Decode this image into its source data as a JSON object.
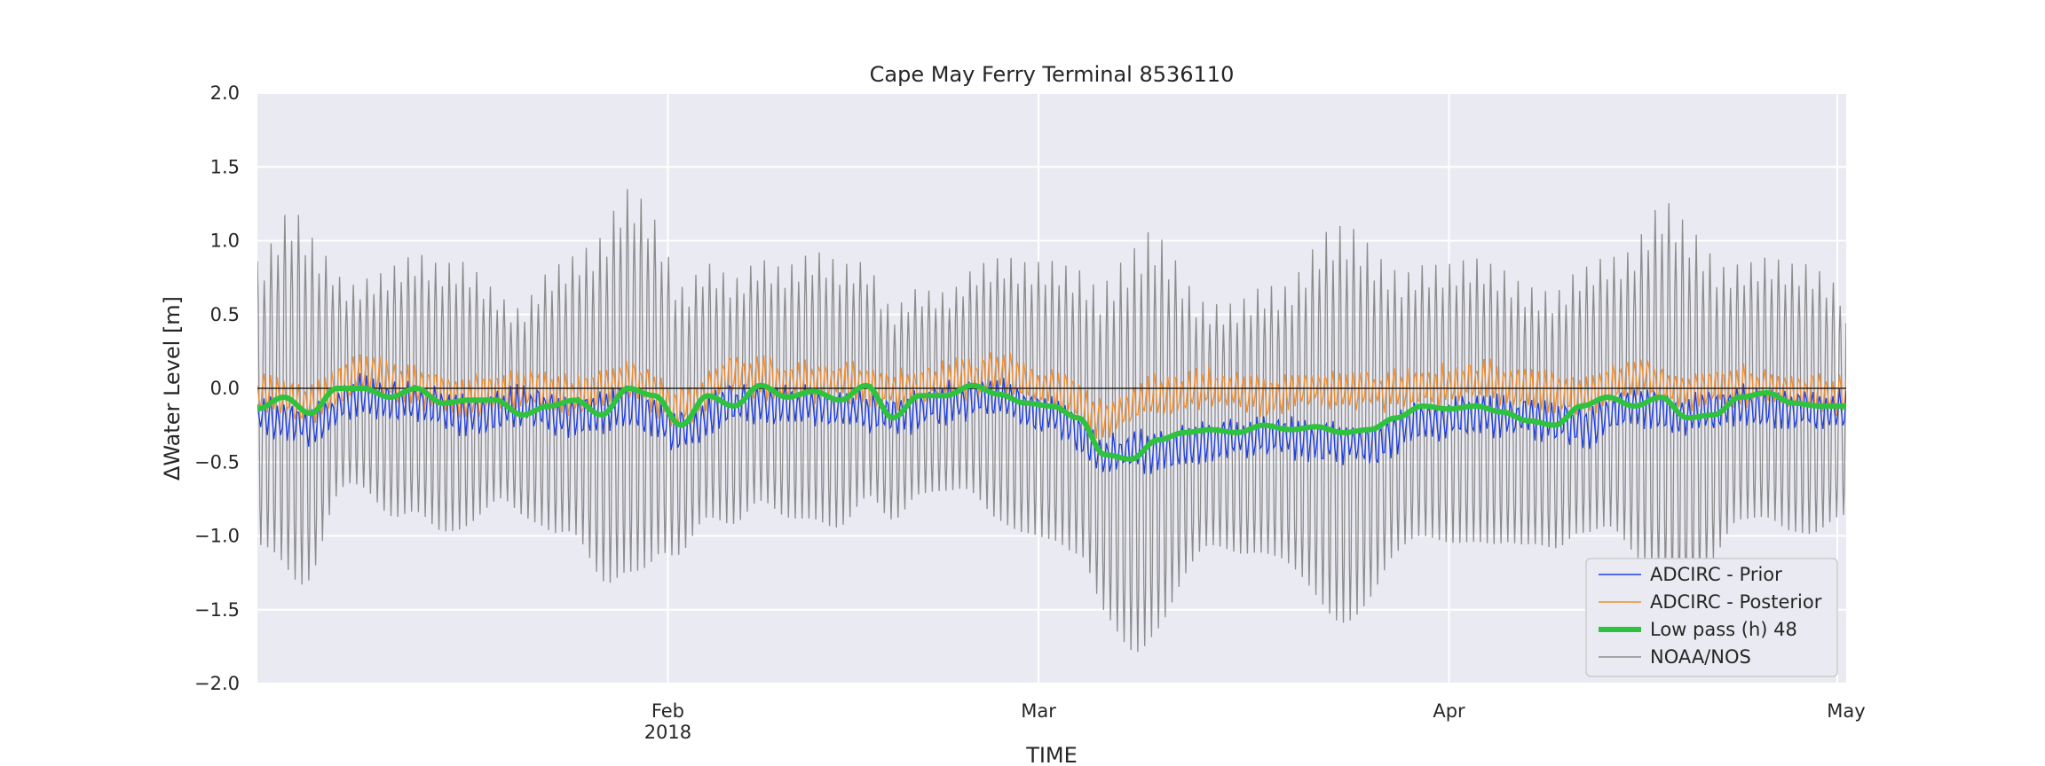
{
  "chart_data": {
    "type": "line",
    "title": "Cape May Ferry Terminal  8536110",
    "xlabel": "TIME",
    "ylabel": "ΔWater Level [m]",
    "xlim": [
      "2018-01-01",
      "2018-05-01"
    ],
    "ylim": [
      -2.0,
      2.0
    ],
    "y_ticks": [
      -2.0,
      -1.5,
      -1.0,
      -0.5,
      0.0,
      0.5,
      1.0,
      1.5,
      2.0
    ],
    "y_tick_labels": [
      "−2.0",
      "−1.5",
      "−1.0",
      "−0.5",
      "0.0",
      "0.5",
      "1.0",
      "1.5",
      "2.0"
    ],
    "x_ticks": [
      {
        "date": "2018-02-01",
        "label": "Feb",
        "sublabel": "2018"
      },
      {
        "date": "2018-03-01",
        "label": "Mar",
        "sublabel": ""
      },
      {
        "date": "2018-04-01",
        "label": "Apr",
        "sublabel": ""
      },
      {
        "date": "2018-05-01",
        "label": "May",
        "sublabel": ""
      }
    ],
    "grid": true,
    "zero_line": true,
    "legend_position": "lower-right",
    "background_color": "#eaeaf2",
    "series": [
      {
        "name": "ADCIRC - Prior",
        "color": "#1f3fe0",
        "style": "thin",
        "description_values": "tidal-filtered residual, approx. low pass plus ±0.1 m noise",
        "x": [
          "2018-01-01",
          "2018-01-05",
          "2018-01-09",
          "2018-01-13",
          "2018-01-17",
          "2018-01-21",
          "2018-01-25",
          "2018-01-29",
          "2018-02-02",
          "2018-02-06",
          "2018-02-10",
          "2018-02-14",
          "2018-02-18",
          "2018-02-22",
          "2018-02-26",
          "2018-03-02",
          "2018-03-06",
          "2018-03-10",
          "2018-03-14",
          "2018-03-18",
          "2018-03-22",
          "2018-03-26",
          "2018-03-30",
          "2018-04-03",
          "2018-04-07",
          "2018-04-11",
          "2018-04-15",
          "2018-04-19",
          "2018-04-23",
          "2018-04-27",
          "2018-05-01"
        ],
        "y": [
          -0.18,
          -0.25,
          -0.05,
          -0.1,
          -0.18,
          -0.12,
          -0.2,
          -0.12,
          -0.28,
          -0.1,
          -0.1,
          -0.14,
          -0.18,
          -0.1,
          -0.06,
          -0.18,
          -0.45,
          -0.42,
          -0.35,
          -0.33,
          -0.35,
          -0.38,
          -0.22,
          -0.18,
          -0.2,
          -0.26,
          -0.12,
          -0.18,
          -0.12,
          -0.14,
          -0.15
        ]
      },
      {
        "name": "ADCIRC - Posterior",
        "color": "#f28e2b",
        "style": "thin",
        "x": [
          "2018-01-01",
          "2018-01-05",
          "2018-01-09",
          "2018-01-13",
          "2018-01-17",
          "2018-01-21",
          "2018-01-25",
          "2018-01-29",
          "2018-02-02",
          "2018-02-06",
          "2018-02-10",
          "2018-02-14",
          "2018-02-18",
          "2018-02-22",
          "2018-02-26",
          "2018-03-02",
          "2018-03-06",
          "2018-03-10",
          "2018-03-14",
          "2018-03-18",
          "2018-03-22",
          "2018-03-26",
          "2018-03-30",
          "2018-04-03",
          "2018-04-07",
          "2018-04-11",
          "2018-04-15",
          "2018-04-19",
          "2018-04-23",
          "2018-04-27",
          "2018-05-01"
        ],
        "y": [
          -0.05,
          -0.1,
          0.1,
          0.0,
          -0.05,
          0.0,
          -0.05,
          0.05,
          -0.12,
          0.1,
          0.05,
          0.05,
          0.0,
          0.05,
          0.1,
          0.0,
          -0.2,
          -0.05,
          0.0,
          -0.05,
          0.0,
          -0.02,
          0.0,
          0.05,
          0.0,
          -0.05,
          0.08,
          -0.02,
          0.02,
          -0.02,
          -0.05
        ]
      },
      {
        "name": "Low pass (h) 48",
        "color": "#2ec23e",
        "style": "thick",
        "x": [
          "2018-01-01",
          "2018-01-03",
          "2018-01-05",
          "2018-01-07",
          "2018-01-09",
          "2018-01-11",
          "2018-01-13",
          "2018-01-15",
          "2018-01-17",
          "2018-01-19",
          "2018-01-21",
          "2018-01-23",
          "2018-01-25",
          "2018-01-27",
          "2018-01-29",
          "2018-01-31",
          "2018-02-02",
          "2018-02-04",
          "2018-02-06",
          "2018-02-08",
          "2018-02-10",
          "2018-02-12",
          "2018-02-14",
          "2018-02-16",
          "2018-02-18",
          "2018-02-20",
          "2018-02-22",
          "2018-02-24",
          "2018-02-26",
          "2018-02-28",
          "2018-03-02",
          "2018-03-04",
          "2018-03-06",
          "2018-03-08",
          "2018-03-10",
          "2018-03-12",
          "2018-03-14",
          "2018-03-16",
          "2018-03-18",
          "2018-03-20",
          "2018-03-22",
          "2018-03-24",
          "2018-03-26",
          "2018-03-28",
          "2018-03-30",
          "2018-04-01",
          "2018-04-03",
          "2018-04-05",
          "2018-04-07",
          "2018-04-09",
          "2018-04-11",
          "2018-04-13",
          "2018-04-15",
          "2018-04-17",
          "2018-04-19",
          "2018-04-21",
          "2018-04-23",
          "2018-04-25",
          "2018-04-27",
          "2018-04-29",
          "2018-05-01"
        ],
        "y": [
          -0.14,
          -0.06,
          -0.17,
          0.0,
          0.0,
          -0.06,
          0.0,
          -0.1,
          -0.08,
          -0.08,
          -0.18,
          -0.12,
          -0.08,
          -0.18,
          0.0,
          -0.05,
          -0.25,
          -0.05,
          -0.12,
          0.02,
          -0.06,
          -0.02,
          -0.08,
          0.02,
          -0.2,
          -0.05,
          -0.05,
          0.02,
          -0.04,
          -0.1,
          -0.12,
          -0.2,
          -0.45,
          -0.48,
          -0.35,
          -0.3,
          -0.28,
          -0.3,
          -0.25,
          -0.28,
          -0.26,
          -0.3,
          -0.28,
          -0.2,
          -0.12,
          -0.14,
          -0.12,
          -0.16,
          -0.22,
          -0.25,
          -0.12,
          -0.06,
          -0.12,
          -0.06,
          -0.2,
          -0.18,
          -0.06,
          -0.03,
          -0.1,
          -0.12,
          -0.12
        ]
      },
      {
        "name": "NOAA/NOS",
        "color": "#8c8c8c",
        "style": "thin",
        "description_values": "semi-diurnal tidal oscillation (period ~12.42 h) with spring-neap amplitude envelope",
        "envelope_x": [
          "2018-01-01",
          "2018-01-04",
          "2018-01-08",
          "2018-01-12",
          "2018-01-16",
          "2018-01-20",
          "2018-01-24",
          "2018-01-29",
          "2018-02-03",
          "2018-02-08",
          "2018-02-13",
          "2018-02-18",
          "2018-02-22",
          "2018-02-27",
          "2018-03-04",
          "2018-03-09",
          "2018-03-14",
          "2018-03-19",
          "2018-03-24",
          "2018-03-29",
          "2018-04-03",
          "2018-04-08",
          "2018-04-13",
          "2018-04-18",
          "2018-04-23",
          "2018-04-28",
          "2018-05-01"
        ],
        "envelope_amp": [
          1.0,
          1.3,
          0.7,
          0.9,
          0.95,
          0.7,
          0.95,
          1.35,
          0.9,
          0.85,
          0.95,
          0.75,
          0.7,
          0.95,
          1.0,
          1.45,
          0.85,
          0.95,
          1.4,
          0.95,
          1.0,
          0.9,
          0.95,
          1.35,
          0.9,
          0.95,
          0.8
        ],
        "mean_level": -0.05
      }
    ]
  }
}
